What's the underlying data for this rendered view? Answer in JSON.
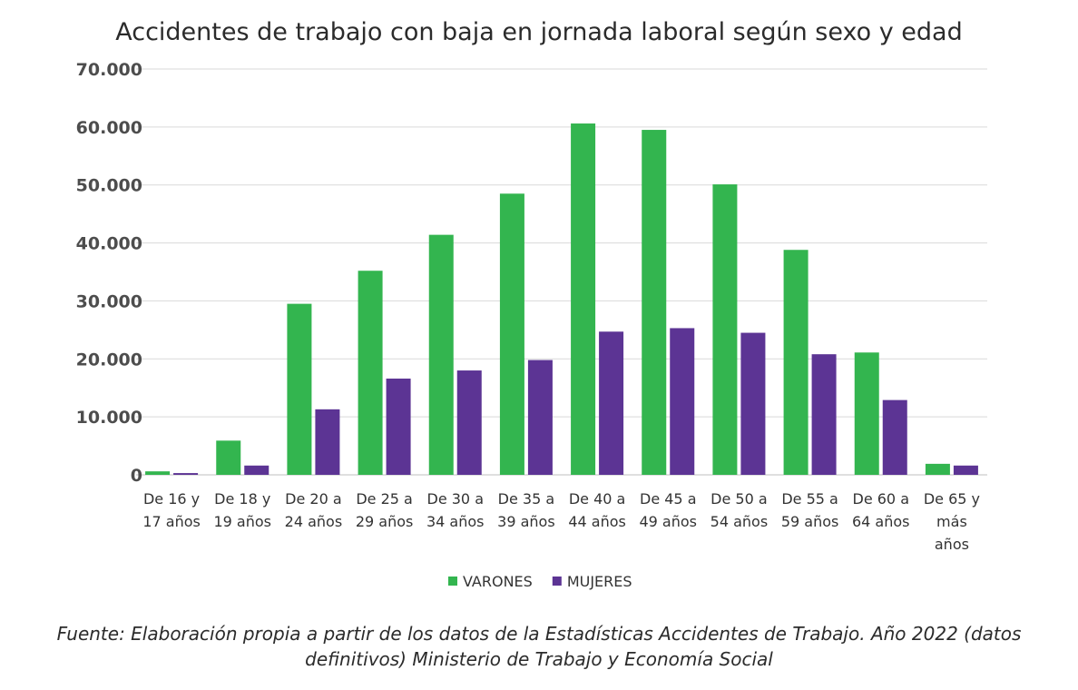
{
  "chart_data": {
    "type": "bar",
    "title": "Accidentes de trabajo con baja en jornada laboral según sexo y edad",
    "categories": [
      [
        "De 16 y",
        "17 años"
      ],
      [
        "De 18 y",
        "19 años"
      ],
      [
        "De 20 a",
        "24 años"
      ],
      [
        "De 25 a",
        "29 años"
      ],
      [
        "De 30 a",
        "34 años"
      ],
      [
        "De 35 a",
        "39 años"
      ],
      [
        "De 40 a",
        "44 años"
      ],
      [
        "De 45 a",
        "49 años"
      ],
      [
        "De 50 a",
        "54 años"
      ],
      [
        "De 55 a",
        "59 años"
      ],
      [
        "De 60 a",
        "64 años"
      ],
      [
        "De 65 y",
        "más",
        "años"
      ]
    ],
    "series": [
      {
        "name": "VARONES",
        "color": "#33b54f",
        "values": [
          600,
          5900,
          29500,
          35200,
          41400,
          48500,
          60600,
          59500,
          50100,
          38800,
          21100,
          1900
        ]
      },
      {
        "name": "MUJERES",
        "color": "#5c3494",
        "values": [
          300,
          1600,
          11300,
          16600,
          18000,
          19800,
          24700,
          25300,
          24500,
          20800,
          12900,
          1600
        ]
      }
    ],
    "ylim": [
      0,
      70000
    ],
    "yticks": [
      0,
      10000,
      20000,
      30000,
      40000,
      50000,
      60000,
      70000
    ],
    "ytick_labels": [
      "0",
      "10.000",
      "20.000",
      "30.000",
      "40.000",
      "50.000",
      "60.000",
      "70.000"
    ],
    "grid": true,
    "legend_position": "bottom-center",
    "xlabel": "",
    "ylabel": ""
  },
  "source": {
    "text": "Fuente: Elaboración propia a partir de los datos de la Estadísticas Accidentes de Trabajo. Año 2022 (datos definitivos) Ministerio de Trabajo y Economía Social"
  }
}
